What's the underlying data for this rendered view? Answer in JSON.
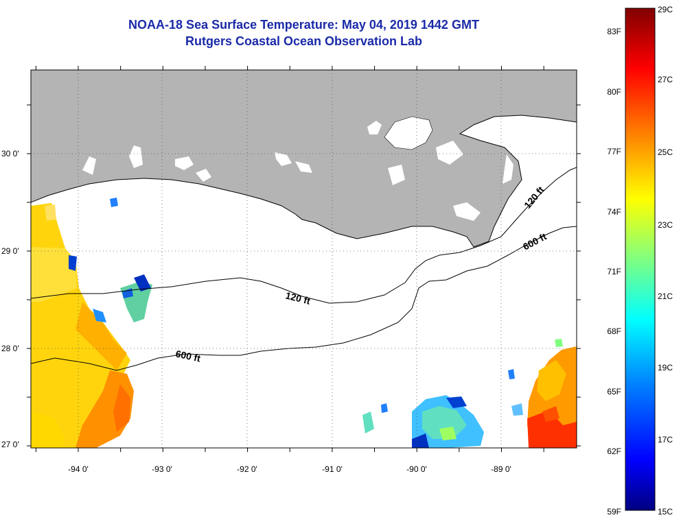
{
  "title": {
    "line1": "NOAA-18 Sea Surface Temperature:  May 04, 2019 1442 GMT",
    "line2": "Rutgers Coastal Ocean Observation Lab"
  },
  "axes": {
    "lon_labels": [
      "-94 0'",
      "-93 0'",
      "-92 0'",
      "-91 0'",
      "-90 0'",
      "-89 0'"
    ],
    "lat_labels": [
      "30 0'",
      "29 0'",
      "28 0'",
      "27 0'"
    ]
  },
  "contours": {
    "label_120_a": "120 ft",
    "label_120_b": "120 ft",
    "label_600_a": "600 ft",
    "label_600_b": "600 ft"
  },
  "colorbar": {
    "f_labels": [
      "83F",
      "80F",
      "77F",
      "74F",
      "71F",
      "68F",
      "65F",
      "62F",
      "59F"
    ],
    "c_labels": [
      "29C",
      "27C",
      "25C",
      "23C",
      "21C",
      "19C",
      "17C",
      "15C"
    ],
    "colors": [
      "#800000",
      "#ff0000",
      "#ff8000",
      "#ffff00",
      "#80ff80",
      "#00ffff",
      "#0080ff",
      "#0000ff",
      "#000080"
    ]
  },
  "map_colors": {
    "land": "#b4b4b4",
    "water": "#ffffff",
    "grid": "#555555"
  }
}
